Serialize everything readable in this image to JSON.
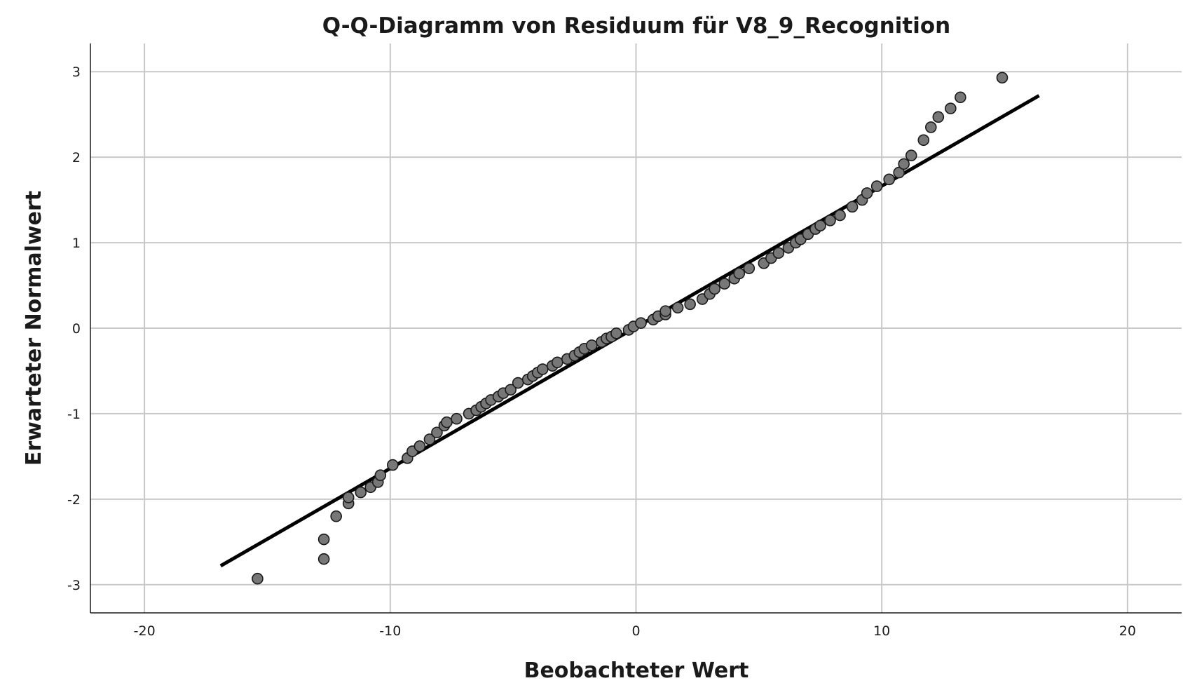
{
  "chart_data": {
    "type": "scatter",
    "title": "Q-Q-Diagramm von Residuum für V8_9_Recognition",
    "xlabel": "Beobachteter Wert",
    "ylabel": "Erwarteter Normalwert",
    "xlim": [
      -22.2,
      22.2
    ],
    "ylim": [
      -3.33,
      3.33
    ],
    "xticks": [
      -20,
      -10,
      0,
      10,
      20
    ],
    "xtick_labels": [
      "-20",
      "-10",
      "0",
      "10",
      "20"
    ],
    "yticks": [
      -3,
      -2,
      -1,
      0,
      1,
      2,
      3
    ],
    "ytick_labels": [
      "-3",
      "-2",
      "-1",
      "0",
      "1",
      "2",
      "3"
    ],
    "grid": true,
    "legend": "none",
    "colors": {
      "point_fill": "#777777",
      "point_stroke": "#1a1a1a",
      "reference_line": "#000000",
      "grid": "#c8c8c8",
      "axis": "#1a1a1a"
    },
    "reference_line": {
      "x": [
        -16.9,
        16.4
      ],
      "y": [
        -2.78,
        2.72
      ]
    },
    "series": [
      {
        "x": [
          -15.4,
          -12.7,
          -12.7,
          -12.2,
          -11.7,
          -11.7,
          -11.2,
          -10.8,
          -10.5,
          -10.4,
          -9.9,
          -9.3,
          -9.1,
          -8.8,
          -8.4,
          -8.1,
          -7.8,
          -7.7,
          -7.3,
          -6.8,
          -6.5,
          -6.3,
          -6.1,
          -5.9,
          -5.6,
          -5.4,
          -5.1,
          -4.8,
          -4.4,
          -4.2,
          -4.0,
          -3.8,
          -3.4,
          -3.2,
          -2.8,
          -2.5,
          -2.3,
          -2.1,
          -1.8,
          -1.4,
          -1.2,
          -1.0,
          -0.8,
          -0.3,
          -0.1,
          0.2,
          0.7,
          0.9,
          1.2,
          1.2,
          1.7,
          2.2,
          2.7,
          3.0,
          3.2,
          3.6,
          4.0,
          4.2,
          4.6,
          5.2,
          5.5,
          5.8,
          6.2,
          6.5,
          6.7,
          7.0,
          7.3,
          7.5,
          7.9,
          8.3,
          8.8,
          9.2,
          9.4,
          9.8,
          10.3,
          10.7,
          10.9,
          11.2,
          11.7,
          12.0,
          12.3,
          12.8,
          13.2,
          14.9
        ],
        "y": [
          -2.93,
          -2.7,
          -2.47,
          -2.2,
          -2.05,
          -1.98,
          -1.92,
          -1.86,
          -1.8,
          -1.72,
          -1.6,
          -1.52,
          -1.44,
          -1.38,
          -1.3,
          -1.22,
          -1.14,
          -1.1,
          -1.06,
          -1.0,
          -0.96,
          -0.92,
          -0.88,
          -0.84,
          -0.8,
          -0.76,
          -0.72,
          -0.64,
          -0.6,
          -0.56,
          -0.52,
          -0.48,
          -0.44,
          -0.4,
          -0.36,
          -0.32,
          -0.28,
          -0.24,
          -0.2,
          -0.16,
          -0.12,
          -0.1,
          -0.06,
          -0.02,
          0.02,
          0.06,
          0.1,
          0.14,
          0.16,
          0.2,
          0.24,
          0.28,
          0.34,
          0.4,
          0.46,
          0.52,
          0.58,
          0.64,
          0.7,
          0.76,
          0.82,
          0.88,
          0.94,
          1.0,
          1.04,
          1.1,
          1.16,
          1.2,
          1.26,
          1.32,
          1.42,
          1.5,
          1.58,
          1.66,
          1.74,
          1.82,
          1.92,
          2.02,
          2.2,
          2.35,
          2.47,
          2.57,
          2.7,
          2.93
        ]
      }
    ]
  }
}
